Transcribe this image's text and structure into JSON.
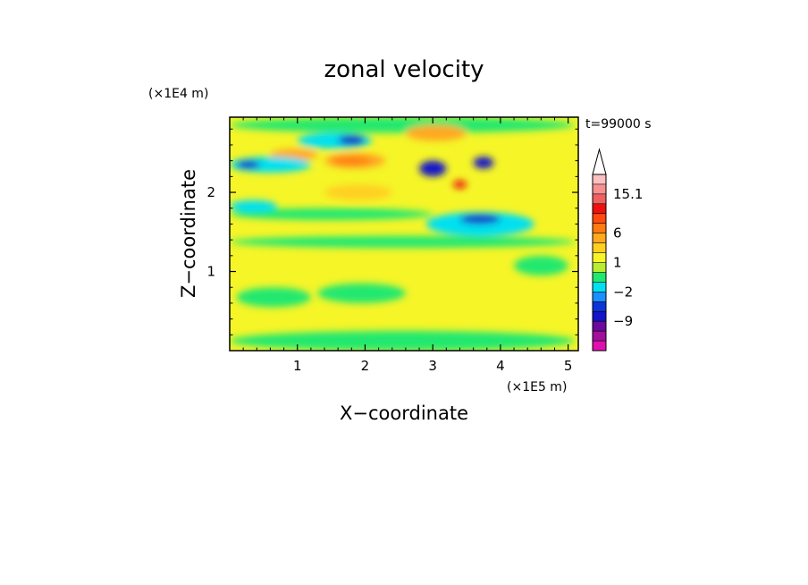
{
  "chart_data": {
    "type": "heatmap",
    "title": "zonal velocity",
    "xlabel": "X−coordinate",
    "ylabel": "Z−coordinate",
    "x_multiplier": "(×1E5 m)",
    "y_multiplier": "(×1E4 m)",
    "time_label": "t=99000 s",
    "xlim": [
      0,
      5.15
    ],
    "ylim": [
      0,
      2.95
    ],
    "xticks": [
      1,
      2,
      3,
      4,
      5
    ],
    "xtick_labels": [
      "1",
      "2",
      "3",
      "4",
      "5"
    ],
    "yticks": [
      1,
      2
    ],
    "ytick_labels": [
      "1",
      "2"
    ],
    "colorbar": {
      "levels": [
        {
          "color": "#e010b0"
        },
        {
          "color": "#a0109a"
        },
        {
          "color": "#6a0a9c"
        },
        {
          "color": "#1414c8"
        },
        {
          "color": "#0a36d8"
        },
        {
          "color": "#1a90ff"
        },
        {
          "color": "#00e0f0"
        },
        {
          "color": "#20e870"
        },
        {
          "color": "#b8ee30"
        },
        {
          "color": "#f5f528"
        },
        {
          "color": "#ffd020"
        },
        {
          "color": "#ffa820"
        },
        {
          "color": "#ff7a10"
        },
        {
          "color": "#ff4a10"
        },
        {
          "color": "#ee1010"
        },
        {
          "color": "#f06060"
        },
        {
          "color": "#f89090"
        },
        {
          "color": "#fcc0c0"
        }
      ],
      "tick_labels": [
        {
          "label": "15.1",
          "value": 15.1
        },
        {
          "label": "6",
          "value": 6
        },
        {
          "label": "1",
          "value": 1
        },
        {
          "label": "−2",
          "value": -2
        },
        {
          "label": "−9",
          "value": -9
        }
      ],
      "extend_top": true
    },
    "field_sketch": {
      "background": "#f5f528",
      "regions": [
        {
          "color": "#20e870",
          "x": [
            0,
            5.1
          ],
          "z": [
            0.0,
            0.25
          ]
        },
        {
          "color": "#20e870",
          "x": [
            0.1,
            1.2
          ],
          "z": [
            0.55,
            0.8
          ]
        },
        {
          "color": "#20e870",
          "x": [
            1.3,
            2.6
          ],
          "z": [
            0.6,
            0.85
          ]
        },
        {
          "color": "#20e870",
          "x": [
            4.2,
            5.0
          ],
          "z": [
            0.95,
            1.2
          ]
        },
        {
          "color": "#20e870",
          "x": [
            0,
            5.1
          ],
          "z": [
            1.3,
            1.45
          ]
        },
        {
          "color": "#20e870",
          "x": [
            0,
            3.0
          ],
          "z": [
            1.65,
            1.8
          ]
        },
        {
          "color": "#20e870",
          "x": [
            0,
            5.1
          ],
          "z": [
            2.75,
            2.95
          ]
        },
        {
          "color": "#ffd020",
          "x": [
            1.4,
            2.4
          ],
          "z": [
            1.9,
            2.1
          ]
        },
        {
          "color": "#ffa820",
          "x": [
            1.4,
            2.3
          ],
          "z": [
            2.3,
            2.5
          ]
        },
        {
          "color": "#ff7a10",
          "x": [
            1.5,
            2.1
          ],
          "z": [
            2.35,
            2.45
          ]
        },
        {
          "color": "#ffa820",
          "x": [
            2.6,
            3.5
          ],
          "z": [
            2.65,
            2.85
          ]
        },
        {
          "color": "#ffa820",
          "x": [
            0.6,
            1.3
          ],
          "z": [
            2.4,
            2.55
          ]
        },
        {
          "color": "#00e0f0",
          "x": [
            0,
            1.2
          ],
          "z": [
            2.25,
            2.45
          ]
        },
        {
          "color": "#00e0f0",
          "x": [
            1.0,
            2.1
          ],
          "z": [
            2.55,
            2.75
          ]
        },
        {
          "color": "#00e0f0",
          "x": [
            2.9,
            4.5
          ],
          "z": [
            1.45,
            1.75
          ]
        },
        {
          "color": "#00e0f0",
          "x": [
            0,
            0.7
          ],
          "z": [
            1.75,
            1.9
          ]
        },
        {
          "color": "#1414c8",
          "x": [
            0.1,
            0.45
          ],
          "z": [
            2.3,
            2.4
          ]
        },
        {
          "color": "#1414c8",
          "x": [
            1.6,
            2.0
          ],
          "z": [
            2.6,
            2.72
          ]
        },
        {
          "color": "#1414c8",
          "x": [
            3.4,
            4.0
          ],
          "z": [
            1.6,
            1.72
          ]
        },
        {
          "color": "#1414c8",
          "x": [
            2.8,
            3.2
          ],
          "z": [
            2.2,
            2.4
          ]
        },
        {
          "color": "#1414c8",
          "x": [
            3.6,
            3.9
          ],
          "z": [
            2.3,
            2.45
          ]
        },
        {
          "color": "#ee1010",
          "x": [
            3.3,
            3.5
          ],
          "z": [
            2.05,
            2.15
          ]
        }
      ]
    }
  }
}
